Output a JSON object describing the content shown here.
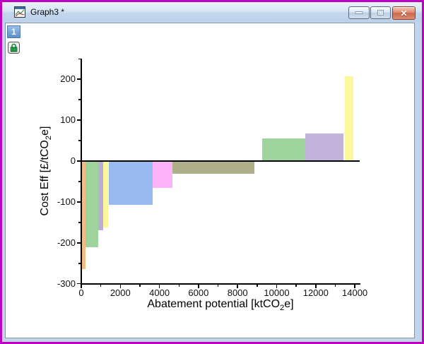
{
  "window": {
    "title": "Graph3 *",
    "border_color": "#C001C0",
    "icons": {
      "close_glyph": "✕"
    }
  },
  "layer_bar": {
    "layer1_label": "1",
    "lock_icon": "green-padlock"
  },
  "chart_data": {
    "type": "bar",
    "subtype": "variable-width-macc",
    "title": "",
    "xlabel": "Abatement potential [ktCO2e]",
    "ylabel": "Cost Eff [£/tCO2e]",
    "xlabel_parts": {
      "pre": "Abatement potential [ktCO",
      "sub": "2",
      "post": "e]"
    },
    "ylabel_parts": {
      "pre": "Cost Eff [£/tCO",
      "sub": "2",
      "post": "e]"
    },
    "x_unit": "ktCO2e",
    "y_unit": "£/tCO2e",
    "xlim": [
      0,
      14300
    ],
    "ylim": [
      -300,
      250
    ],
    "x_major_ticks": [
      0,
      2000,
      4000,
      6000,
      8000,
      10000,
      12000,
      14000
    ],
    "x_minor_ticks": [
      1000,
      3000,
      5000,
      7000,
      9000,
      11000,
      13000
    ],
    "y_major_ticks": [
      200,
      100,
      0,
      -100,
      -200,
      -300
    ],
    "y_minor_ticks": [
      250,
      150,
      50,
      -50,
      -150,
      -250
    ],
    "grid": false,
    "legend": "none",
    "zero_line": true,
    "bars": [
      {
        "x0": 0,
        "x1": 200,
        "value": -265,
        "color": "#F2BC86"
      },
      {
        "x0": 200,
        "x1": 860,
        "value": -210,
        "color": "#9ED49C"
      },
      {
        "x0": 860,
        "x1": 1120,
        "value": -170,
        "color": "#BBADD3"
      },
      {
        "x0": 1120,
        "x1": 1370,
        "value": -163,
        "color": "#FBF89B"
      },
      {
        "x0": 1400,
        "x1": 3650,
        "value": -107,
        "color": "#99BAF0"
      },
      {
        "x0": 3650,
        "x1": 4680,
        "value": -65,
        "color": "#FDB3F8"
      },
      {
        "x0": 4680,
        "x1": 8860,
        "value": -31,
        "color": "#AFB089"
      },
      {
        "x0": 9260,
        "x1": 11470,
        "value": 55,
        "color": "#9ED49C"
      },
      {
        "x0": 11470,
        "x1": 13420,
        "value": 67,
        "color": "#C3B3DC"
      },
      {
        "x0": 13490,
        "x1": 13920,
        "value": 208,
        "color": "#FBF89B"
      }
    ]
  }
}
